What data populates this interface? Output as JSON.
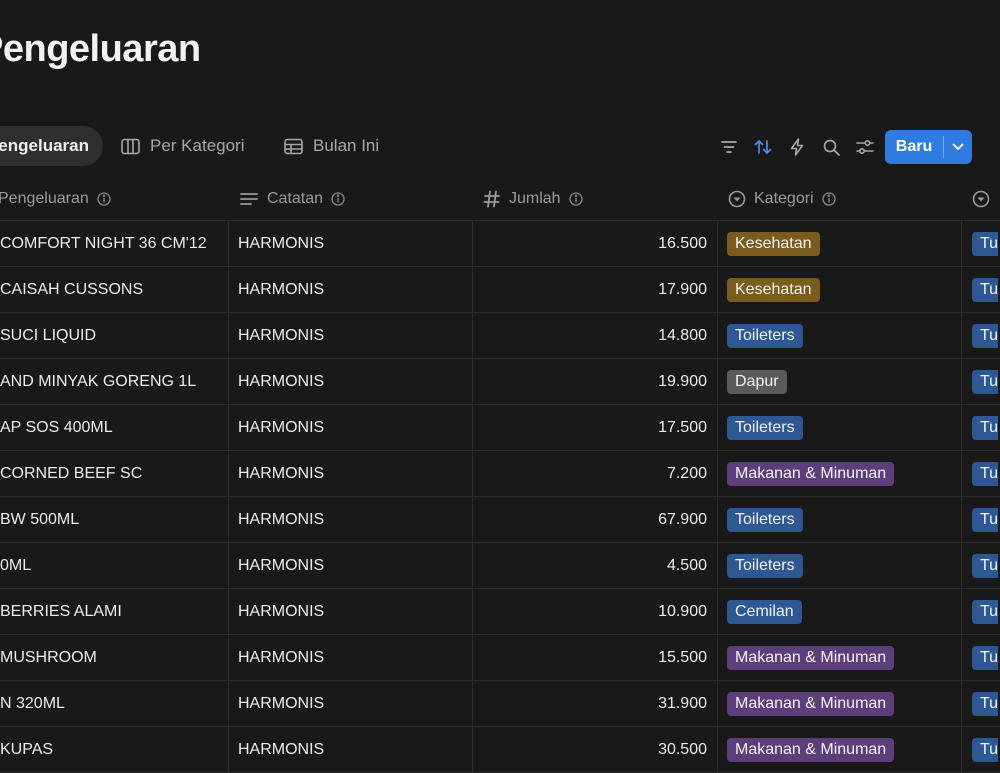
{
  "page": {
    "title": "Pengeluaran"
  },
  "views": [
    {
      "label": "Pengeluaran",
      "icon": "list-icon",
      "active": true
    },
    {
      "label": "Per Kategori",
      "icon": "board-icon"
    },
    {
      "label": "Bulan Ini",
      "icon": "table-icon"
    }
  ],
  "toolbar": {
    "icons": [
      "filter-icon",
      "sort-icon",
      "automation-icon",
      "search-icon",
      "settings-icon"
    ],
    "new_label": "Baru"
  },
  "columns": [
    {
      "label": "Pengeluaran",
      "icon": "title-icon"
    },
    {
      "label": "Catatan",
      "icon": "text-icon"
    },
    {
      "label": "Jumlah",
      "icon": "hash-icon"
    },
    {
      "label": "Kategori",
      "icon": "select-icon"
    },
    {
      "label": "",
      "icon": "select-icon"
    }
  ],
  "colors": {
    "Kesehatan": "#7a5c1e",
    "Toileters": "#2e5893",
    "Dapur": "#5a5a5a",
    "Makanan & Minuman": "#5c3f7a",
    "Cemilan": "#2e5893",
    "last": "#2e5893",
    "accent": "#2f7ce0"
  },
  "rows": [
    {
      "name": "COMFORT NIGHT 36 CM'12",
      "note": "HARMONIS",
      "amount": "16.500",
      "category": "Kesehatan",
      "last": "Tu"
    },
    {
      "name": "CAISAH CUSSONS",
      "note": "HARMONIS",
      "amount": "17.900",
      "category": "Kesehatan",
      "last": "Tu"
    },
    {
      "name": "SUCI LIQUID",
      "note": "HARMONIS",
      "amount": "14.800",
      "category": "Toileters",
      "last": "Tu"
    },
    {
      "name": "AND MINYAK GORENG 1L",
      "note": "HARMONIS",
      "amount": "19.900",
      "category": "Dapur",
      "last": "Tu"
    },
    {
      "name": "AP SOS 400ML",
      "note": "HARMONIS",
      "amount": "17.500",
      "category": "Toileters",
      "last": "Tu"
    },
    {
      "name": "CORNED BEEF SC",
      "note": "HARMONIS",
      "amount": "7.200",
      "category": "Makanan & Minuman",
      "last": "Tu"
    },
    {
      "name": "BW 500ML",
      "note": "HARMONIS",
      "amount": "67.900",
      "category": "Toileters",
      "last": "Tu"
    },
    {
      "name": "0ML",
      "note": "HARMONIS",
      "amount": "4.500",
      "category": "Toileters",
      "last": "Tu"
    },
    {
      "name": "BERRIES ALAMI",
      "note": "HARMONIS",
      "amount": "10.900",
      "category": "Cemilan",
      "last": "Tu"
    },
    {
      "name": "MUSHROOM",
      "note": "HARMONIS",
      "amount": "15.500",
      "category": "Makanan & Minuman",
      "last": "Tu"
    },
    {
      "name": "N 320ML",
      "note": "HARMONIS",
      "amount": "31.900",
      "category": "Makanan & Minuman",
      "last": "Tu"
    },
    {
      "name": "KUPAS",
      "note": "HARMONIS",
      "amount": "30.500",
      "category": "Makanan & Minuman",
      "last": "Tu"
    }
  ]
}
